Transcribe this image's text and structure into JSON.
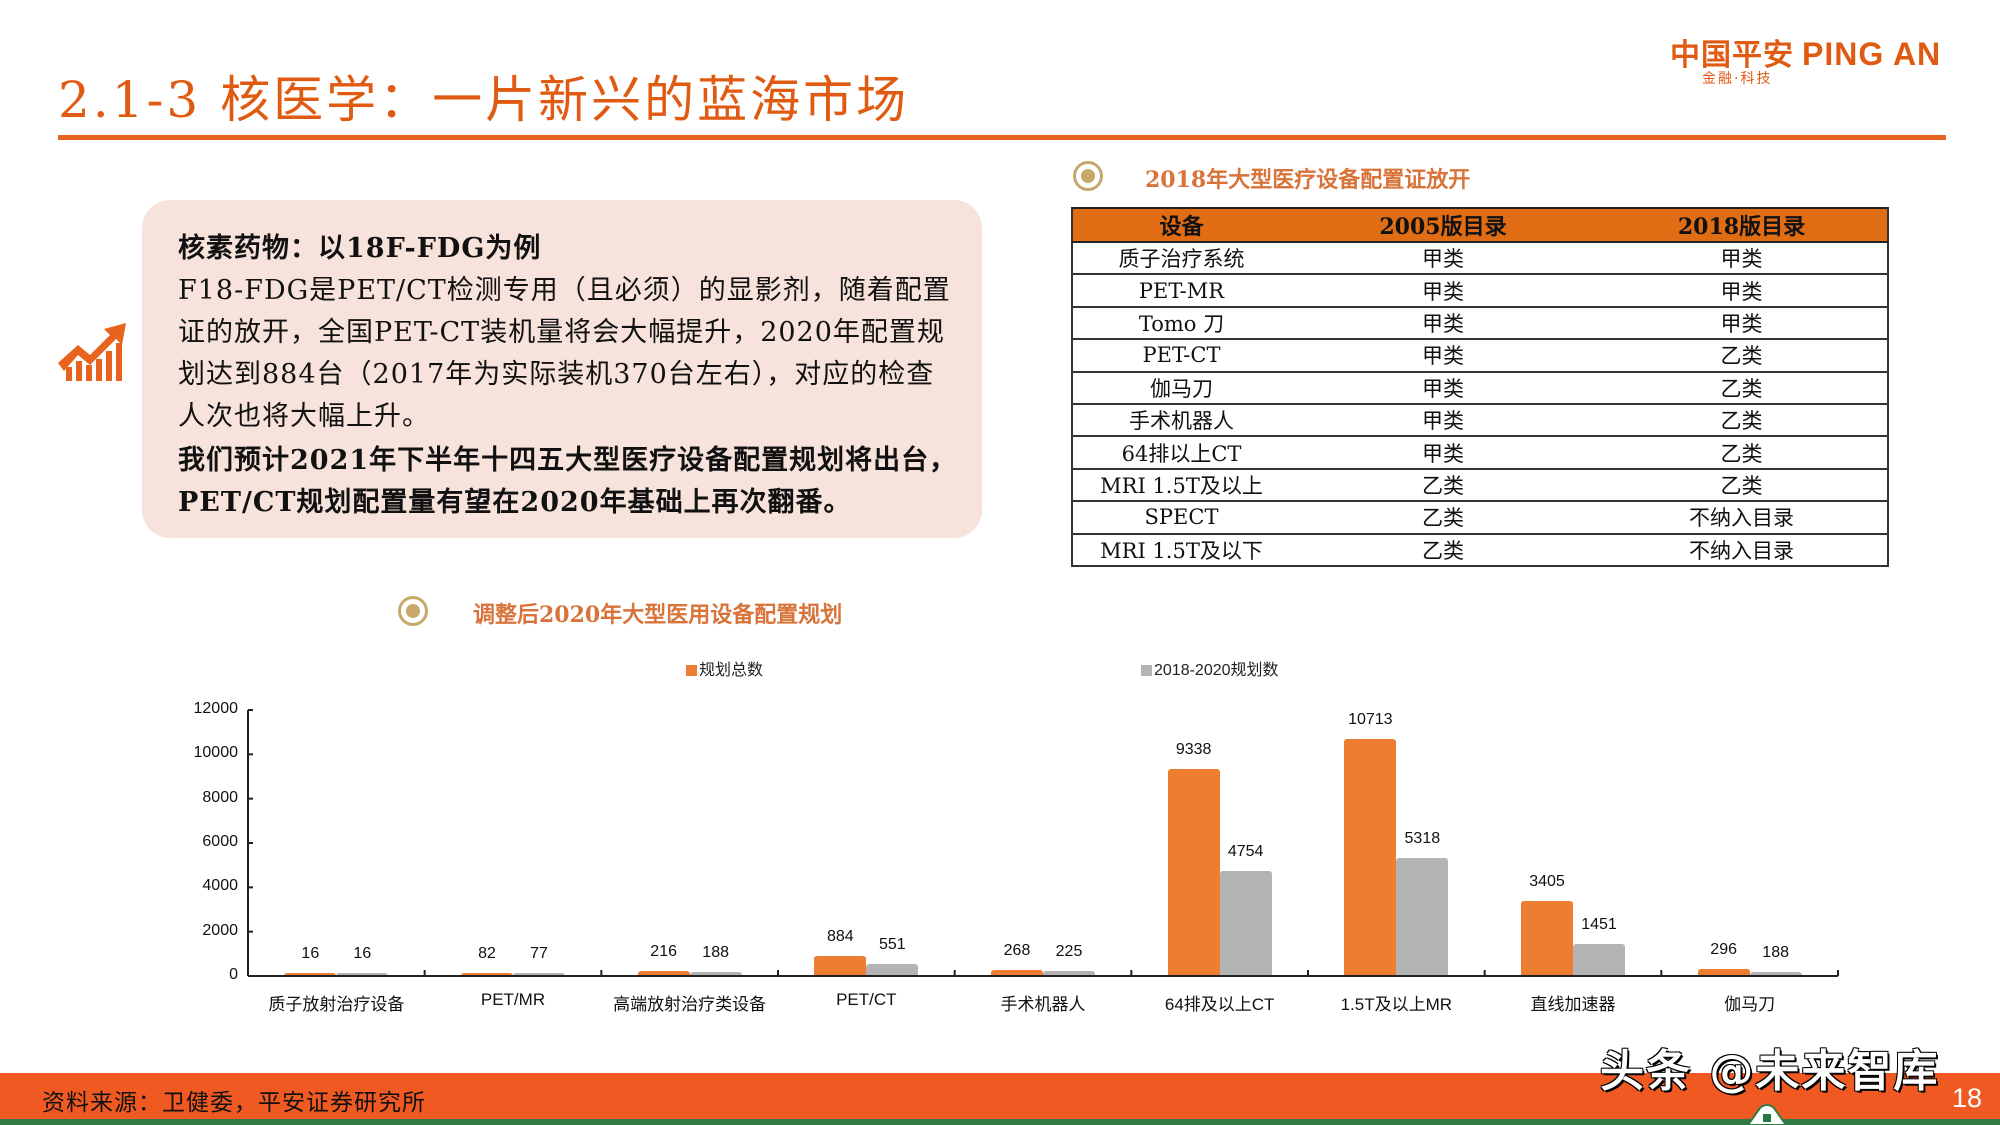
{
  "header": {
    "title": "2.1-3 核医学：一片新兴的蓝海市场",
    "logo_cn": "中国平安",
    "logo_en": "PING AN",
    "logo_tagline": "金融·科技"
  },
  "callout": {
    "icon": "trending-up-chart-icon",
    "lines": [
      {
        "text": "核素药物：以18F-FDG为例",
        "bold": true
      },
      {
        "text": "F18-FDG是PET/CT检测专用（且必须）的显影剂，随着配置",
        "bold": false
      },
      {
        "text": "证的放开，全国PET-CT装机量将会大幅提升，2020年配置规",
        "bold": false
      },
      {
        "text": "划达到884台（2017年为实际装机370台左右），对应的检查",
        "bold": false
      },
      {
        "text": "人次也将大幅上升。",
        "bold": false
      },
      {
        "text": "我们预计2021年下半年十四五大型医疗设备配置规划将出台，",
        "bold": true
      },
      {
        "text": "PET/CT规划配置量有望在2020年基础上再次翻番。",
        "bold": true
      }
    ]
  },
  "table_section": {
    "title": "2018年大型医疗设备配置证放开",
    "columns": [
      "设备",
      "2005版目录",
      "2018版目录"
    ],
    "rows": [
      [
        "质子治疗系统",
        "甲类",
        "甲类"
      ],
      [
        "PET-MR",
        "甲类",
        "甲类"
      ],
      [
        "Tomo 刀",
        "甲类",
        "甲类"
      ],
      [
        "PET-CT",
        "甲类",
        "乙类"
      ],
      [
        "伽马刀",
        "甲类",
        "乙类"
      ],
      [
        "手术机器人",
        "甲类",
        "乙类"
      ],
      [
        "64排以上CT",
        "甲类",
        "乙类"
      ],
      [
        "MRI 1.5T及以上",
        "乙类",
        "乙类"
      ],
      [
        "SPECT",
        "乙类",
        "不纳入目录"
      ],
      [
        "MRI 1.5T及以下",
        "乙类",
        "不纳入目录"
      ]
    ]
  },
  "chart_section": {
    "title": "调整后2020年大型医用设备配置规划"
  },
  "chart_data": {
    "type": "bar",
    "title": "调整后2020年大型医用设备配置规划",
    "categories": [
      "质子放射治疗设备",
      "PET/MR",
      "高端放射治疗类设备",
      "PET/CT",
      "手术机器人",
      "64排及以上CT",
      "1.5T及以上MR",
      "直线加速器",
      "伽马刀"
    ],
    "series": [
      {
        "name": "规划总数",
        "color": "#ed7d31",
        "values": [
          16,
          82,
          216,
          884,
          268,
          9338,
          10713,
          3405,
          296
        ]
      },
      {
        "name": "2018-2020规划数",
        "color": "#b4b4b4",
        "values": [
          16,
          77,
          188,
          551,
          225,
          4754,
          5318,
          1451,
          188
        ]
      }
    ],
    "yticks": [
      0,
      2000,
      4000,
      6000,
      8000,
      10000,
      12000
    ],
    "ylim": [
      0,
      12000
    ],
    "xlabel": "",
    "ylabel": "",
    "grid": false,
    "legend_position": "top"
  },
  "footer": {
    "source": "资料来源：卫健委，平安证券研究所",
    "page_number": "18",
    "watermark": "头条 @未来智库"
  },
  "colors": {
    "brand_orange": "#e8631e",
    "footer_orange": "#f05a22",
    "table_header": "#e06c13",
    "callout_bg": "#f7e3db",
    "accent_gold": "#c8a96a",
    "footer_green": "#2f7a45"
  }
}
